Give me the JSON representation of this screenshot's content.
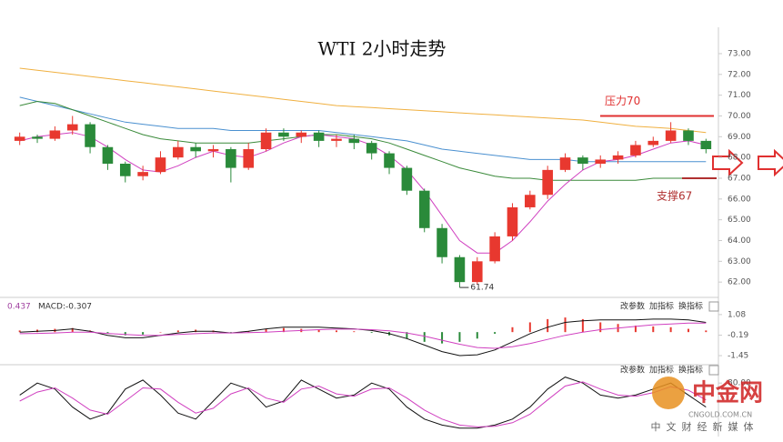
{
  "chart_data": [
    {
      "type": "candlestick",
      "title": "WTI 2小时走势",
      "open": [
        68.8,
        69.0,
        68.9,
        69.3,
        69.6,
        68.5,
        67.7,
        67.1,
        67.3,
        68.0,
        68.5,
        68.3,
        68.4,
        67.5,
        68.4,
        69.2,
        69.0,
        69.2,
        68.8,
        68.9,
        68.7,
        68.2,
        67.5,
        66.4,
        64.6,
        63.2,
        62.0,
        63.0,
        64.2,
        65.6,
        66.2,
        67.4,
        68.0,
        67.7,
        67.9,
        68.1,
        68.6,
        68.8,
        69.3,
        68.8
      ],
      "high": [
        69.2,
        69.1,
        69.5,
        70.0,
        69.7,
        68.6,
        67.8,
        67.6,
        68.3,
        68.8,
        68.7,
        68.6,
        68.5,
        68.7,
        69.4,
        69.4,
        69.3,
        69.3,
        69.1,
        69.1,
        68.8,
        68.3,
        67.6,
        66.5,
        64.8,
        63.3,
        63.2,
        64.4,
        65.8,
        66.4,
        67.6,
        68.2,
        68.1,
        68.1,
        68.3,
        68.8,
        69.0,
        69.7,
        69.4,
        68.9
      ],
      "low": [
        68.6,
        68.7,
        68.8,
        69.1,
        68.2,
        67.4,
        66.8,
        66.9,
        67.2,
        67.9,
        68.0,
        68.0,
        66.8,
        67.4,
        68.3,
        68.8,
        68.7,
        68.5,
        68.5,
        68.4,
        67.9,
        67.2,
        66.2,
        64.4,
        62.9,
        61.74,
        61.9,
        62.9,
        64.0,
        65.5,
        66.0,
        67.3,
        67.4,
        67.5,
        67.7,
        68.0,
        68.5,
        68.7,
        68.6,
        68.2
      ],
      "close": [
        69.0,
        68.9,
        69.3,
        69.6,
        68.5,
        67.7,
        67.1,
        67.3,
        68.0,
        68.5,
        68.3,
        68.4,
        67.5,
        68.4,
        69.2,
        69.0,
        69.2,
        68.8,
        68.9,
        68.7,
        68.2,
        67.5,
        66.4,
        64.6,
        63.2,
        62.0,
        63.0,
        64.2,
        65.6,
        66.2,
        67.4,
        68.0,
        67.7,
        67.9,
        68.1,
        68.6,
        68.8,
        69.3,
        68.8,
        68.4
      ],
      "up_color": "#e8382f",
      "down_color": "#2a8a3a",
      "lines": [
        {
          "color": "#f0b040",
          "values": [
            72.3,
            72.2,
            72.1,
            72.0,
            71.9,
            71.8,
            71.7,
            71.6,
            71.5,
            71.4,
            71.3,
            71.2,
            71.1,
            71.0,
            70.9,
            70.8,
            70.7,
            70.6,
            70.5,
            70.45,
            70.4,
            70.35,
            70.3,
            70.25,
            70.2,
            70.15,
            70.1,
            70.05,
            70.0,
            69.95,
            69.9,
            69.85,
            69.8,
            69.7,
            69.6,
            69.5,
            69.45,
            69.4,
            69.3,
            69.2
          ]
        },
        {
          "color": "#4a90d0",
          "values": [
            70.9,
            70.7,
            70.5,
            70.3,
            70.1,
            69.9,
            69.7,
            69.6,
            69.5,
            69.4,
            69.4,
            69.4,
            69.3,
            69.3,
            69.3,
            69.3,
            69.3,
            69.3,
            69.2,
            69.1,
            69.0,
            68.9,
            68.8,
            68.6,
            68.4,
            68.3,
            68.2,
            68.1,
            68.0,
            67.9,
            67.9,
            67.9,
            67.8,
            67.8,
            67.8,
            67.8,
            67.8,
            67.8,
            67.8,
            67.8
          ]
        },
        {
          "color": "#3a8a3a",
          "values": [
            70.5,
            70.7,
            70.6,
            70.3,
            70.0,
            69.7,
            69.4,
            69.1,
            68.9,
            68.8,
            68.7,
            68.7,
            68.7,
            68.7,
            68.8,
            68.9,
            69.0,
            69.1,
            69.1,
            69.0,
            68.9,
            68.7,
            68.4,
            68.1,
            67.8,
            67.5,
            67.3,
            67.1,
            67.0,
            67.0,
            66.9,
            66.9,
            66.9,
            66.9,
            66.9,
            66.9,
            67.0,
            67.0,
            67.0,
            67.0
          ]
        },
        {
          "color": "#d040c0",
          "values": [
            68.8,
            69.0,
            69.1,
            69.2,
            69.0,
            68.5,
            67.9,
            67.4,
            67.3,
            67.6,
            68.0,
            68.3,
            68.1,
            68.0,
            68.3,
            68.7,
            69.0,
            69.1,
            69.0,
            68.9,
            68.6,
            68.1,
            67.4,
            66.4,
            65.2,
            64.0,
            63.4,
            63.4,
            64.0,
            64.9,
            65.9,
            66.7,
            67.4,
            67.8,
            67.9,
            68.1,
            68.4,
            68.7,
            68.8,
            68.6
          ]
        }
      ],
      "ylim": [
        61.35,
        74.05
      ],
      "yticks": [
        {
          "value": 73,
          "label": "73.00"
        },
        {
          "value": 72,
          "label": "72.00"
        },
        {
          "value": 71,
          "label": "71.00"
        },
        {
          "value": 70,
          "label": "70.00"
        },
        {
          "value": 69,
          "label": "69.00"
        },
        {
          "value": 68,
          "label": "68.00"
        },
        {
          "value": 67,
          "label": "67.00"
        },
        {
          "value": 66,
          "label": "66.00"
        },
        {
          "value": 65,
          "label": "65.00"
        },
        {
          "value": 64,
          "label": "64.00"
        },
        {
          "value": 63,
          "label": "63.00"
        },
        {
          "value": 62,
          "label": "62.00"
        }
      ],
      "annotations": [
        {
          "text": "压力70",
          "value": 70,
          "color": "#e03030"
        },
        {
          "text": "支撑67",
          "value": 67,
          "color": "#b03030"
        }
      ],
      "low_label": 61.74
    },
    {
      "type": "macd",
      "label": "MACD:-0.307",
      "left_label": "0.437",
      "buttons": [
        "改参数",
        "加指标",
        "换指标"
      ],
      "histogram": [
        0.1,
        0.15,
        0.2,
        0.25,
        0.1,
        -0.1,
        -0.2,
        -0.15,
        0.0,
        0.1,
        0.15,
        0.1,
        -0.05,
        0.05,
        0.2,
        0.25,
        0.2,
        0.15,
        0.1,
        0.05,
        -0.05,
        -0.2,
        -0.4,
        -0.6,
        -0.7,
        -0.6,
        -0.4,
        -0.1,
        0.3,
        0.6,
        0.8,
        0.9,
        0.8,
        0.6,
        0.5,
        0.4,
        0.35,
        0.3,
        0.2,
        0.1
      ],
      "up_color": "#e8382f",
      "down_color": "#2a8a3a",
      "lines": [
        {
          "color": "#111111",
          "values": [
            0.0,
            0.05,
            0.1,
            0.2,
            0.05,
            -0.2,
            -0.35,
            -0.35,
            -0.2,
            -0.05,
            0.05,
            0.05,
            -0.05,
            0.05,
            0.2,
            0.3,
            0.3,
            0.3,
            0.25,
            0.2,
            0.1,
            -0.1,
            -0.4,
            -0.8,
            -1.2,
            -1.45,
            -1.4,
            -1.1,
            -0.6,
            -0.1,
            0.3,
            0.6,
            0.7,
            0.75,
            0.75,
            0.75,
            0.8,
            0.8,
            0.75,
            0.6
          ]
        },
        {
          "color": "#d040c0",
          "values": [
            -0.1,
            -0.08,
            -0.05,
            0.0,
            0.0,
            -0.08,
            -0.15,
            -0.2,
            -0.2,
            -0.15,
            -0.1,
            -0.05,
            -0.05,
            -0.03,
            0.0,
            0.05,
            0.1,
            0.15,
            0.18,
            0.18,
            0.15,
            0.08,
            -0.05,
            -0.25,
            -0.5,
            -0.75,
            -0.95,
            -1.0,
            -0.9,
            -0.7,
            -0.45,
            -0.2,
            0.0,
            0.15,
            0.25,
            0.35,
            0.45,
            0.5,
            0.55,
            0.55
          ]
        }
      ],
      "ylim": [
        -1.84,
        1.97
      ],
      "yticks": [
        1.08,
        -0.19,
        -1.45
      ]
    },
    {
      "type": "kd",
      "buttons": [
        "改参数",
        "加指标",
        "换指标"
      ],
      "lines": [
        {
          "color": "#111111",
          "values": [
            60,
            80,
            70,
            40,
            20,
            30,
            70,
            85,
            60,
            30,
            20,
            50,
            80,
            70,
            40,
            50,
            85,
            70,
            55,
            60,
            80,
            70,
            40,
            20,
            10,
            5,
            5,
            10,
            20,
            40,
            70,
            90,
            80,
            60,
            55,
            60,
            70,
            80,
            60,
            40
          ]
        },
        {
          "color": "#d040c0",
          "values": [
            50,
            65,
            72,
            55,
            35,
            28,
            50,
            72,
            70,
            48,
            30,
            38,
            62,
            72,
            55,
            48,
            70,
            75,
            62,
            58,
            70,
            72,
            55,
            35,
            20,
            10,
            7,
            8,
            14,
            28,
            52,
            75,
            82,
            70,
            60,
            58,
            64,
            74,
            68,
            52
          ]
        }
      ],
      "ylim": [
        0,
        100
      ],
      "yticks": [
        {
          "value": 80,
          "label": "80.00"
        }
      ]
    }
  ],
  "watermark": {
    "name": "中金网",
    "domain": "CNGOLD.COM.CN",
    "tagline": "中文财经新媒体"
  }
}
